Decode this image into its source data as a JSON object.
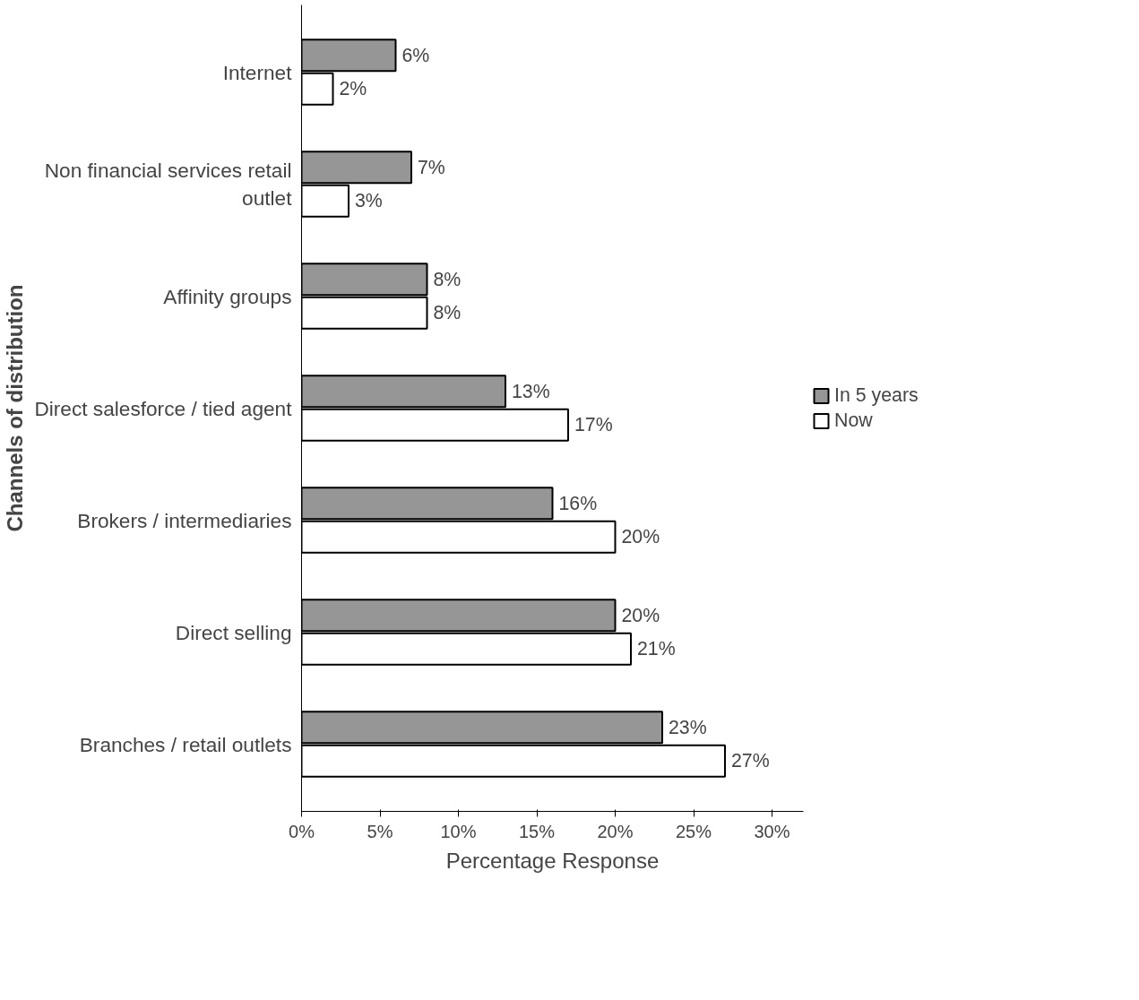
{
  "chart_data": {
    "type": "bar",
    "orientation": "horizontal",
    "xlabel": "Percentage Response",
    "ylabel": "Channels of distribution",
    "categories": [
      "Internet",
      "Non financial services retail outlet",
      "Affinity groups",
      "Direct salesforce / tied agent",
      "Brokers / intermediaries",
      "Direct selling",
      "Branches / retail outlets"
    ],
    "series": [
      {
        "name": "In 5 years",
        "color": "#969696",
        "values": [
          6,
          7,
          8,
          13,
          16,
          20,
          23
        ],
        "value_labels": [
          "6%",
          "7%",
          "8%",
          "13%",
          "16%",
          "20%",
          "23%"
        ]
      },
      {
        "name": "Now",
        "color": "#ffffff",
        "values": [
          2,
          3,
          8,
          17,
          20,
          21,
          27
        ],
        "value_labels": [
          "2%",
          "3%",
          "8%",
          "17%",
          "20%",
          "21%",
          "27%"
        ]
      }
    ],
    "xlim": [
      0,
      32
    ],
    "xticks": [
      {
        "value": 0,
        "label": "0%"
      },
      {
        "value": 5,
        "label": "5%"
      },
      {
        "value": 10,
        "label": "10%"
      },
      {
        "value": 15,
        "label": "15%"
      },
      {
        "value": 20,
        "label": "20%"
      },
      {
        "value": 25,
        "label": "25%"
      },
      {
        "value": 30,
        "label": "30%"
      }
    ],
    "legend": "right",
    "grid": false
  }
}
